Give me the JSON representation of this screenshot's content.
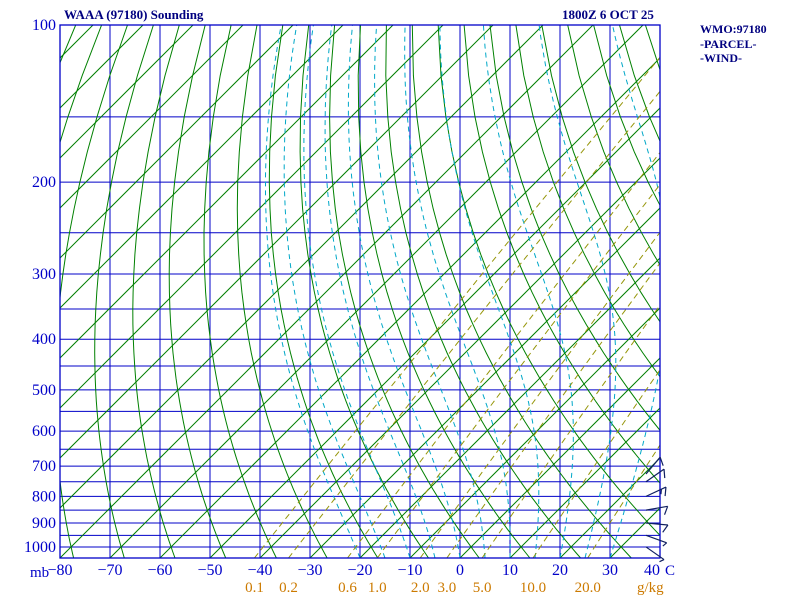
{
  "header": {
    "title": "WAAA (97180) Sounding",
    "datetime": "1800Z  6 OCT 25"
  },
  "legend": {
    "items": [
      "WMO:97180",
      "-PARCEL-",
      "-WIND-"
    ]
  },
  "chart_data": {
    "type": "skewt_log_p_sounding",
    "station": "WAAA",
    "wmo_id": "97180",
    "valid_time": "1800Z 6 OCT 25",
    "pressure_axis": {
      "label": "mb",
      "scale": "log",
      "range_mb": [
        100,
        1050
      ],
      "tick_labels_mb": [
        100,
        200,
        300,
        400,
        500,
        600,
        700,
        800,
        900,
        1000
      ],
      "isobar_lines_mb": [
        100,
        150,
        200,
        250,
        300,
        350,
        400,
        450,
        500,
        550,
        600,
        650,
        700,
        750,
        800,
        850,
        900,
        950,
        1000,
        1050
      ]
    },
    "temperature_axis": {
      "label": "C",
      "range_c": [
        -80,
        40
      ],
      "tick_step_c": 10,
      "tick_labels_c": [
        -80,
        -70,
        -60,
        -50,
        -40,
        -30,
        -20,
        -10,
        0,
        10,
        20,
        30,
        40
      ],
      "skew_deg": 45
    },
    "mixing_ratio_axis": {
      "label": "g/kg",
      "tick_labels_gkg": [
        0.1,
        0.2,
        0.6,
        1.0,
        2.0,
        3.0,
        5.0,
        10.0,
        20.0
      ]
    },
    "isotherms_c": {
      "min": -180,
      "max": 40,
      "step": 10
    },
    "dry_adiabats_theta_c": {
      "min": -100,
      "max": 130,
      "step": 10
    },
    "moist_adiabats_thetaw_c": [
      -20,
      -15,
      -10,
      -5,
      0,
      5,
      10,
      15,
      20,
      25,
      30
    ],
    "wind_barbs": [
      {
        "pressure_mb": 725,
        "dir_deg": 40,
        "speed_kt": 10
      },
      {
        "pressure_mb": 750,
        "dir_deg": 55,
        "speed_kt": 10
      },
      {
        "pressure_mb": 800,
        "dir_deg": 65,
        "speed_kt": 15
      },
      {
        "pressure_mb": 850,
        "dir_deg": 80,
        "speed_kt": 10
      },
      {
        "pressure_mb": 900,
        "dir_deg": 95,
        "speed_kt": 10
      },
      {
        "pressure_mb": 950,
        "dir_deg": 110,
        "speed_kt": 5
      },
      {
        "pressure_mb": 1000,
        "dir_deg": 125,
        "speed_kt": 5
      }
    ],
    "colors": {
      "frame_grid": "#0000C8",
      "isotherm": "#008000",
      "dry_adiabat": "#008000",
      "moist_adiabat": "#00A8C8",
      "mixing_ratio": "#96960A",
      "pressure_labels": "#0000C8",
      "temperature_labels": "#0000C8",
      "mixing_ratio_labels": "#CC7A00",
      "title_text": "#000080",
      "wind_barb": "#102060"
    }
  }
}
